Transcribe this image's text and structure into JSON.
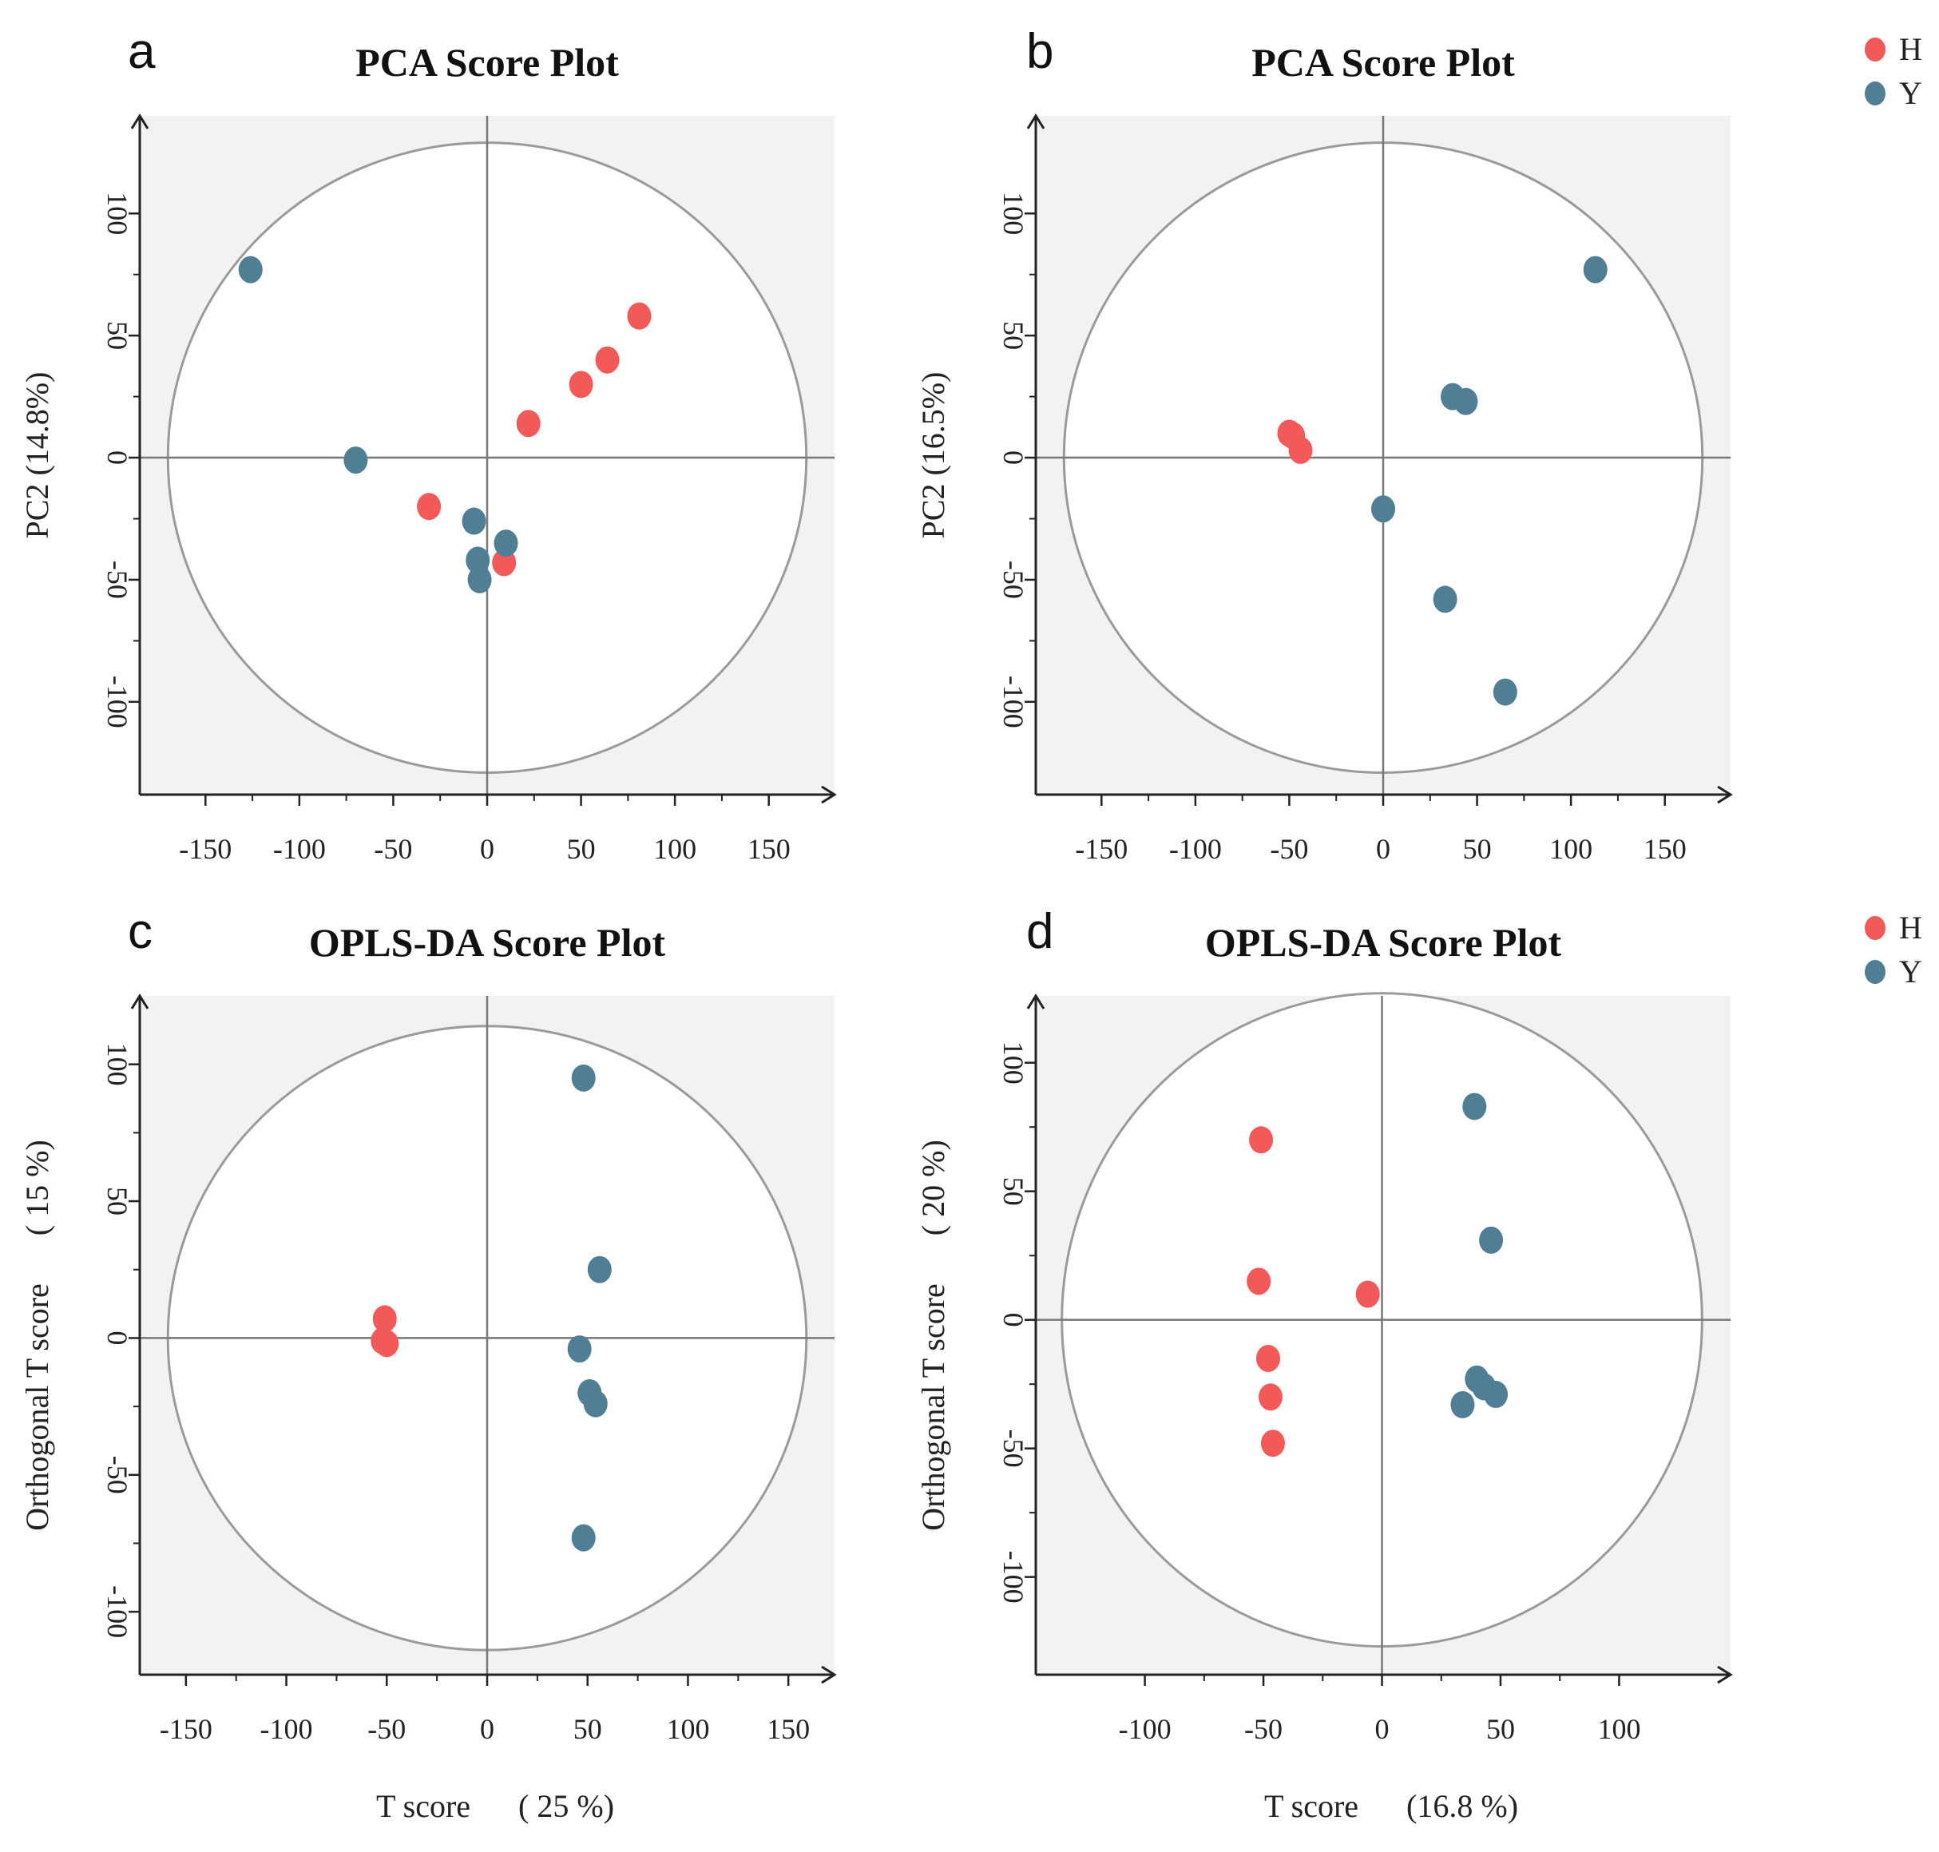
{
  "colors": {
    "H": "#f25a5a",
    "Y": "#4f7e95",
    "panel_bg": "#f2f2f2",
    "axis": "#222222",
    "circle": "#9a9a9a",
    "crosshair": "#777777"
  },
  "legend": [
    {
      "label": "H",
      "color": "#f25a5a"
    },
    {
      "label": "Y",
      "color": "#4f7e95"
    }
  ],
  "chart_data": [
    {
      "type": "scatter",
      "panel_letter": "a",
      "title": "PCA Score Plot",
      "xlabel": "",
      "ylabel": "PC2 (14.8%)",
      "xticks": [
        -150,
        -100,
        -50,
        0,
        50,
        100,
        150
      ],
      "yticks": [
        -100,
        -50,
        0,
        50,
        100
      ],
      "xlim": [
        -185,
        185
      ],
      "ylim": [
        -138,
        140
      ],
      "ellipse_radius": [
        170,
        129
      ],
      "series": [
        {
          "name": "H",
          "x": [
            -31,
            22,
            50,
            64,
            81,
            9
          ],
          "y": [
            -20,
            14,
            30,
            40,
            58,
            -43
          ]
        },
        {
          "name": "Y",
          "x": [
            -126,
            -70,
            -7,
            -5,
            -4,
            10
          ],
          "y": [
            77,
            -1,
            -26,
            -42,
            -50,
            -35
          ]
        }
      ]
    },
    {
      "type": "scatter",
      "panel_letter": "b",
      "title": "PCA Score Plot",
      "xlabel": "",
      "ylabel": "PC2 (16.5%)",
      "xticks": [
        -150,
        -100,
        -50,
        0,
        50,
        100,
        150
      ],
      "yticks": [
        -100,
        -50,
        0,
        50,
        100
      ],
      "xlim": [
        -185,
        185
      ],
      "ylim": [
        -138,
        140
      ],
      "ellipse_radius": [
        170,
        129
      ],
      "series": [
        {
          "name": "H",
          "x": [
            -50,
            -48,
            -44
          ],
          "y": [
            10,
            9,
            3
          ]
        },
        {
          "name": "Y",
          "x": [
            113,
            37,
            44,
            0,
            33,
            65
          ],
          "y": [
            77,
            25,
            23,
            -21,
            -58,
            -96
          ]
        }
      ]
    },
    {
      "type": "scatter",
      "panel_letter": "c",
      "title": "OPLS-DA Score Plot",
      "xlabel": "T score      ( 25 %)",
      "ylabel": "Orthogonal T score      ( 15 %)",
      "xticks": [
        -150,
        -100,
        -50,
        0,
        50,
        100,
        150
      ],
      "yticks": [
        -100,
        -50,
        0,
        50,
        100
      ],
      "xlim": [
        -173,
        173
      ],
      "ylim": [
        -123,
        125
      ],
      "ellipse_radius": [
        159,
        114
      ],
      "series": [
        {
          "name": "H",
          "x": [
            -51,
            -52,
            -50
          ],
          "y": [
            7,
            -1,
            -2
          ]
        },
        {
          "name": "Y",
          "x": [
            48,
            56,
            46,
            51,
            54,
            48
          ],
          "y": [
            95,
            25,
            -4,
            -20,
            -24,
            -73
          ]
        }
      ]
    },
    {
      "type": "scatter",
      "panel_letter": "d",
      "title": "OPLS-DA Score Plot",
      "xlabel": "T score      (16.8 %)",
      "ylabel": "Orthogonal T score      ( 20 %)",
      "xticks": [
        -100,
        -50,
        0,
        50,
        100
      ],
      "yticks": [
        -100,
        -50,
        0,
        50,
        100
      ],
      "xlim": [
        -146,
        147
      ],
      "ylim": [
        -138,
        126
      ],
      "ellipse_radius": [
        135,
        127
      ],
      "series": [
        {
          "name": "H",
          "x": [
            -51,
            -52,
            -6,
            -48,
            -47,
            -46
          ],
          "y": [
            70,
            15,
            10,
            -15,
            -30,
            -48
          ]
        },
        {
          "name": "Y",
          "x": [
            39,
            46,
            40,
            43,
            48,
            34
          ],
          "y": [
            83,
            31,
            -23,
            -26,
            -29,
            -33
          ]
        }
      ]
    }
  ]
}
